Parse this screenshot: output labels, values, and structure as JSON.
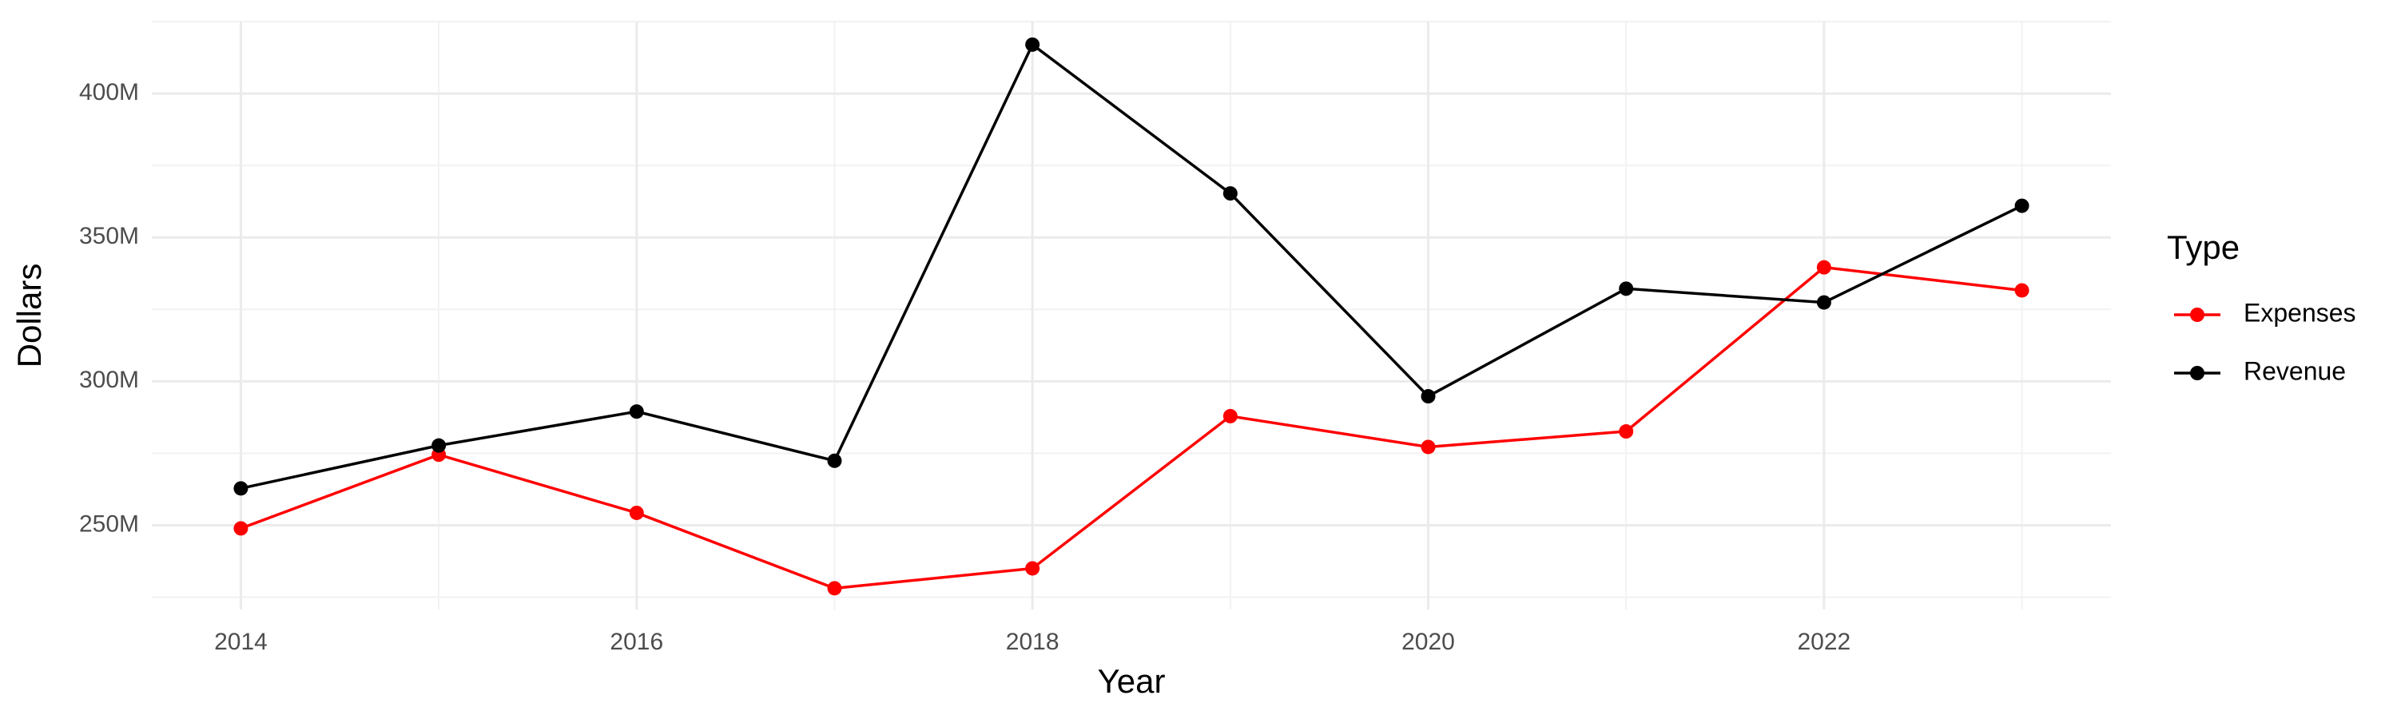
{
  "chart_data": {
    "type": "line",
    "x_label": "Year",
    "y_label": "Dollars",
    "legend_title": "Type",
    "legend_position": "right",
    "grid": true,
    "x": [
      2014,
      2015,
      2016,
      2017,
      2018,
      2019,
      2020,
      2021,
      2022,
      2023
    ],
    "xlim": [
      2013.55,
      2023.45
    ],
    "xticks": [
      2014,
      2016,
      2018,
      2020,
      2022
    ],
    "ylim": [
      220700000,
      425000000
    ],
    "yticks": [
      {
        "value": 250000000,
        "label": "250M"
      },
      {
        "value": 300000000,
        "label": "300M"
      },
      {
        "value": 350000000,
        "label": "350M"
      },
      {
        "value": 400000000,
        "label": "400M"
      }
    ],
    "series": [
      {
        "name": "Expenses",
        "color": "#ff0000",
        "values": [
          248900000,
          274500000,
          254300000,
          228100000,
          235000000,
          287900000,
          277200000,
          282600000,
          339600000,
          331600000
        ]
      },
      {
        "name": "Revenue",
        "color": "#000000",
        "values": [
          262800000,
          277700000,
          289500000,
          272400000,
          417000000,
          365300000,
          294800000,
          332200000,
          327400000,
          361000000
        ]
      }
    ]
  }
}
